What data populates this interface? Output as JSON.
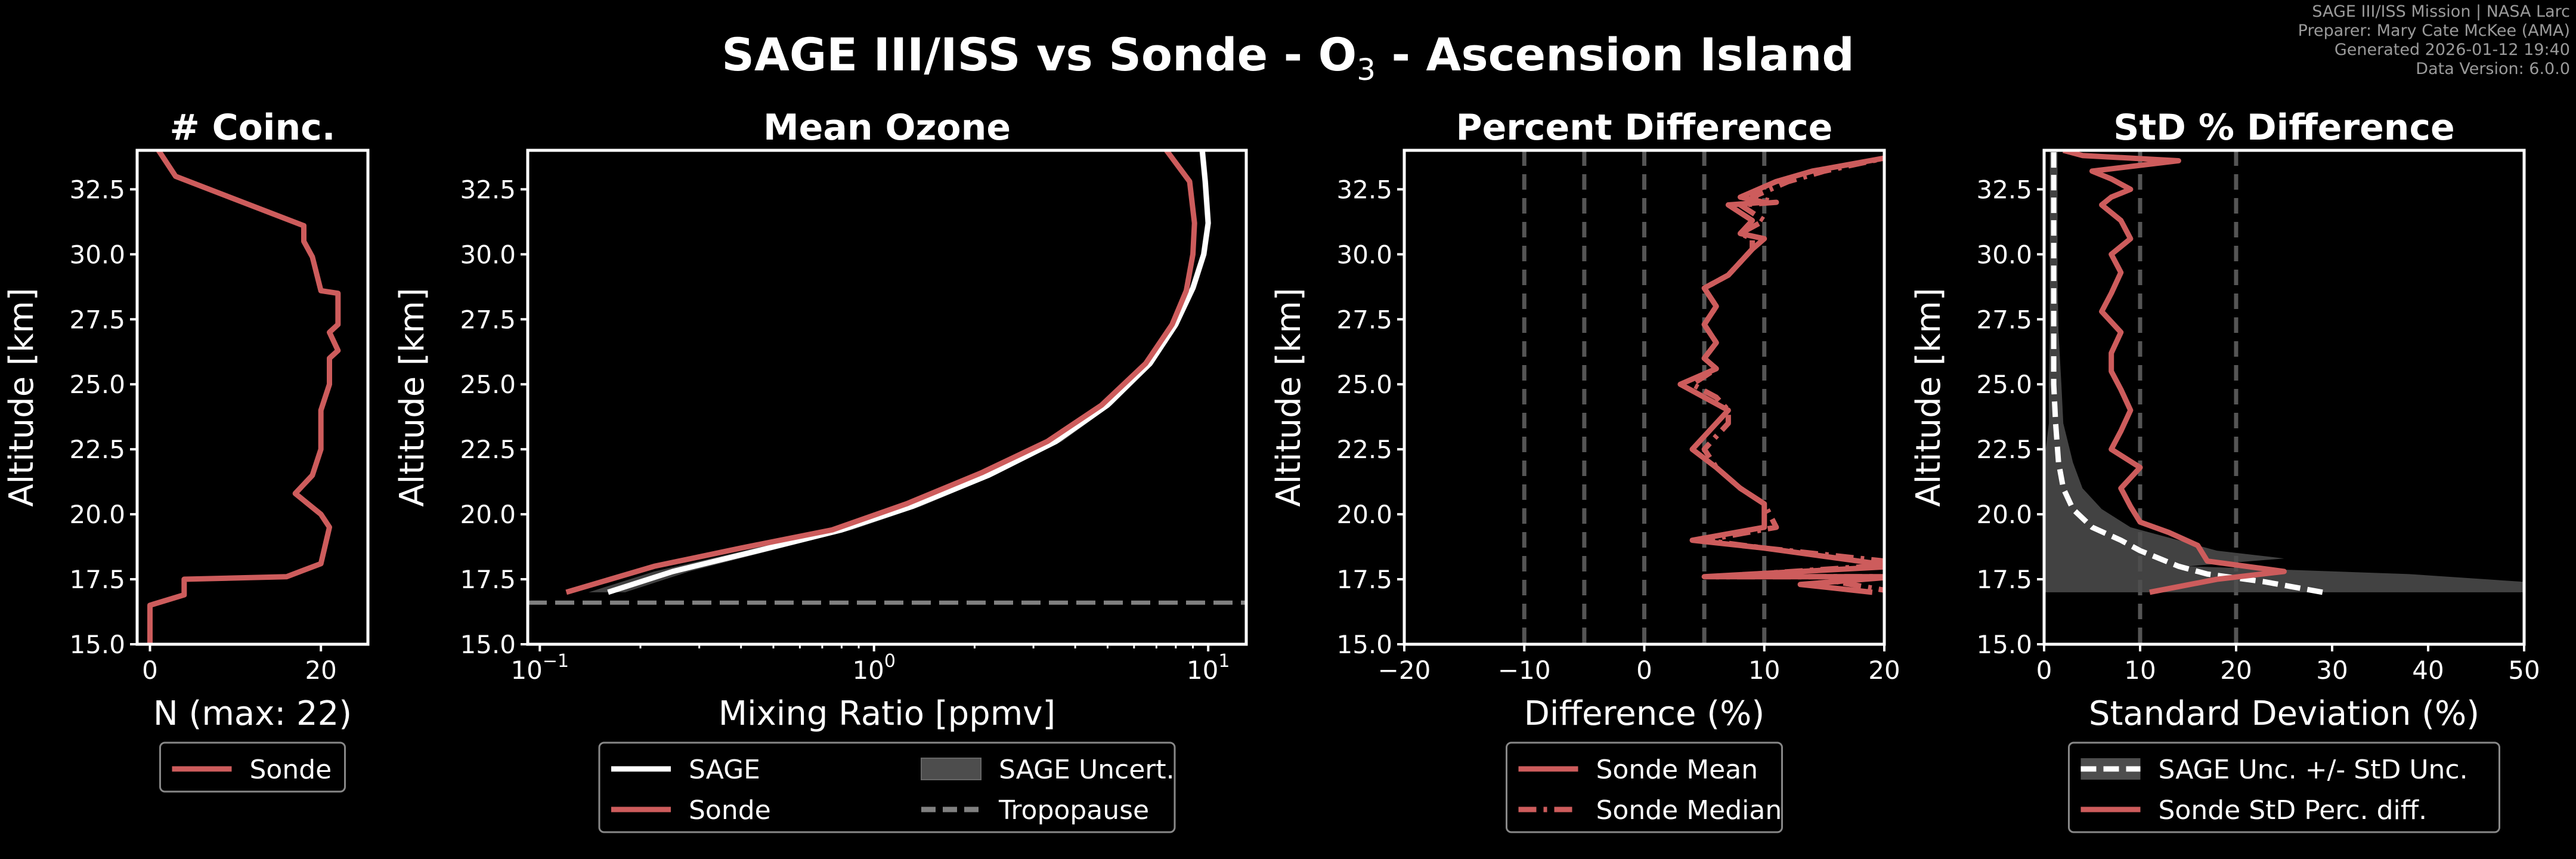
{
  "meta": {
    "line1": "SAGE III/ISS Mission | NASA Larc",
    "line2": "Preparer: Mary Cate McKee (AMA)",
    "line3": "Generated 2026-01-12 19:40",
    "line4": "Data Version: 6.0.0"
  },
  "suptitle": {
    "prefix": "SAGE III/ISS vs Sonde - O",
    "subscript": "3",
    "suffix": " - Ascension Island"
  },
  "colors": {
    "background": "#000000",
    "sonde": "#cd5c5c",
    "sage": "#ffffff",
    "uncert": "#4d4d4d",
    "tropopause": "#808080",
    "refline": "#555555"
  },
  "chart_data": [
    {
      "id": "coinc",
      "type": "line",
      "title": "# Coinc.",
      "xlabel": "N (max: 22)",
      "ylabel": "Altitude [km]",
      "xlim": [
        -1.5,
        25.5
      ],
      "ylim": [
        15.0,
        34.0
      ],
      "xticks": [
        0,
        20
      ],
      "xtick_labels": [
        "0",
        "20"
      ],
      "yticks": [
        15.0,
        17.5,
        20.0,
        22.5,
        25.0,
        27.5,
        30.0,
        32.5
      ],
      "ytick_labels": [
        "15.0",
        "17.5",
        "20.0",
        "22.5",
        "25.0",
        "27.5",
        "30.0",
        "32.5"
      ],
      "legend": [
        "Sonde"
      ],
      "series": [
        {
          "name": "Sonde",
          "style": "solid",
          "x": [
            0,
            0,
            4,
            4,
            16,
            20,
            21,
            20,
            17,
            19,
            20,
            20,
            21,
            21,
            22,
            21,
            22,
            22,
            20,
            19,
            18,
            18,
            3,
            1
          ],
          "y": [
            15.0,
            16.5,
            16.9,
            17.5,
            17.6,
            18.1,
            19.5,
            20.0,
            20.8,
            21.5,
            22.5,
            24.0,
            25.0,
            26.0,
            26.3,
            27.0,
            27.3,
            28.5,
            28.6,
            29.9,
            30.5,
            31.1,
            33.0,
            34.0
          ]
        }
      ]
    },
    {
      "id": "mean",
      "type": "line",
      "title": "Mean Ozone",
      "xlabel": "Mixing Ratio [ppmv]",
      "ylabel": "Altitude [km]",
      "xscale": "log",
      "xlim": [
        0.092,
        13.0
      ],
      "ylim": [
        15.0,
        34.0
      ],
      "xticks": [
        0.1,
        1,
        10
      ],
      "xtick_labels": [
        "10",
        "10",
        "10"
      ],
      "xtick_exponents": [
        "−1",
        "0",
        "1"
      ],
      "yticks": [
        15.0,
        17.5,
        20.0,
        22.5,
        25.0,
        27.5,
        30.0,
        32.5
      ],
      "ytick_labels": [
        "15.0",
        "17.5",
        "20.0",
        "22.5",
        "25.0",
        "27.5",
        "30.0",
        "32.5"
      ],
      "legend": [
        "SAGE",
        "SAGE Uncert.",
        "Sonde",
        "Tropopause"
      ],
      "tropopause_km": 16.6,
      "series": [
        {
          "name": "SAGE",
          "style": "solid",
          "x": [
            0.16,
            0.25,
            0.45,
            0.8,
            1.3,
            2.2,
            3.5,
            5.0,
            6.7,
            8.0,
            9.0,
            9.7,
            10.0,
            9.8,
            9.6
          ],
          "y": [
            17.0,
            17.8,
            18.6,
            19.4,
            20.3,
            21.5,
            22.8,
            24.2,
            25.8,
            27.3,
            28.7,
            30.0,
            31.2,
            32.8,
            34.0
          ]
        },
        {
          "name": "Sonde",
          "style": "solid",
          "x": [
            0.12,
            0.22,
            0.4,
            0.75,
            1.25,
            2.1,
            3.3,
            4.8,
            6.5,
            7.8,
            8.6,
            9.0,
            9.1,
            8.8,
            7.5
          ],
          "y": [
            17.0,
            18.0,
            18.7,
            19.4,
            20.4,
            21.6,
            22.8,
            24.2,
            25.8,
            27.3,
            28.6,
            30.0,
            31.2,
            32.8,
            34.0
          ]
        }
      ],
      "uncert_band": {
        "name": "SAGE Uncert.",
        "x_low": [
          0.14,
          0.22,
          0.41,
          0.74,
          1.22,
          2.1,
          3.35,
          4.85,
          6.55,
          7.85,
          8.8,
          9.5,
          9.8,
          9.6,
          9.4
        ],
        "x_high": [
          0.18,
          0.28,
          0.49,
          0.86,
          1.38,
          2.3,
          3.65,
          5.15,
          6.85,
          8.15,
          9.2,
          9.9,
          10.2,
          10.0,
          9.8
        ],
        "y": [
          17.0,
          17.8,
          18.6,
          19.4,
          20.3,
          21.5,
          22.8,
          24.2,
          25.8,
          27.3,
          28.7,
          30.0,
          31.2,
          32.8,
          34.0
        ]
      }
    },
    {
      "id": "pct",
      "type": "line",
      "title": "Percent Difference",
      "xlabel": "Difference (%)",
      "ylabel": "Altitude [km]",
      "xlim": [
        -20,
        20
      ],
      "ylim": [
        15.0,
        34.0
      ],
      "xticks": [
        -20,
        -10,
        0,
        10,
        20
      ],
      "xtick_labels": [
        "−20",
        "−10",
        "0",
        "10",
        "20"
      ],
      "yticks": [
        15.0,
        17.5,
        20.0,
        22.5,
        25.0,
        27.5,
        30.0,
        32.5
      ],
      "ytick_labels": [
        "15.0",
        "17.5",
        "20.0",
        "22.5",
        "25.0",
        "27.5",
        "30.0",
        "32.5"
      ],
      "reference_lines": [
        -10,
        -5,
        0,
        5,
        10
      ],
      "legend": [
        "Sonde Mean",
        "Sonde Median"
      ],
      "series": [
        {
          "name": "Sonde Mean",
          "style": "solid",
          "x": [
            19,
            13,
            21,
            5,
            21,
            10,
            4,
            10,
            10,
            8,
            6,
            4,
            6,
            7,
            5,
            3,
            6,
            5,
            6,
            5,
            6,
            5,
            7,
            8,
            9,
            10,
            8,
            9,
            7,
            10,
            8,
            11,
            14,
            20
          ],
          "y": [
            17.0,
            17.3,
            17.6,
            17.6,
            18.0,
            18.7,
            19.0,
            19.5,
            20.4,
            21.0,
            21.8,
            22.5,
            23.5,
            24.0,
            24.5,
            25.0,
            25.6,
            26.0,
            26.6,
            27.3,
            28.0,
            28.7,
            29.2,
            29.7,
            30.2,
            30.6,
            30.8,
            31.3,
            31.9,
            32.0,
            32.2,
            32.8,
            33.2,
            33.7
          ]
        },
        {
          "name": "Sonde Median",
          "style": "dashdot",
          "x": [
            21,
            16,
            19,
            6,
            22,
            10,
            5,
            11,
            10,
            8,
            6,
            5,
            7,
            7,
            6,
            4,
            6,
            5,
            6,
            5,
            6,
            5,
            7,
            8,
            9,
            9,
            8,
            10,
            8,
            11,
            9,
            12,
            15,
            20
          ],
          "y": [
            17.0,
            17.4,
            17.6,
            17.6,
            18.1,
            18.7,
            19.0,
            19.5,
            20.4,
            21.0,
            21.8,
            22.5,
            23.5,
            24.0,
            24.5,
            25.0,
            25.6,
            26.0,
            26.6,
            27.3,
            28.0,
            28.7,
            29.2,
            29.7,
            30.2,
            30.6,
            30.8,
            31.3,
            31.9,
            32.0,
            32.2,
            32.8,
            33.2,
            33.7
          ]
        }
      ]
    },
    {
      "id": "std",
      "type": "line",
      "title": "StD % Difference",
      "xlabel": "Standard Deviation (%)",
      "ylabel": "Altitude [km]",
      "xlim": [
        0,
        50
      ],
      "ylim": [
        15.0,
        34.0
      ],
      "xticks": [
        0,
        10,
        20,
        30,
        40,
        50
      ],
      "xtick_labels": [
        "0",
        "10",
        "20",
        "30",
        "40",
        "50"
      ],
      "yticks": [
        15.0,
        17.5,
        20.0,
        22.5,
        25.0,
        27.5,
        30.0,
        32.5
      ],
      "ytick_labels": [
        "15.0",
        "17.5",
        "20.0",
        "22.5",
        "25.0",
        "27.5",
        "30.0",
        "32.5"
      ],
      "reference_lines": [
        10,
        20
      ],
      "legend": [
        "SAGE Unc. +/- StD Unc.",
        "Sonde StD Perc. diff."
      ],
      "series": [
        {
          "name": "SAGE Unc. +/- StD Unc.",
          "style": "dashed",
          "x": [
            29,
            23,
            17,
            14,
            12,
            10,
            8,
            5,
            3,
            2,
            1.5,
            1.2,
            1,
            1,
            1,
            1,
            1,
            1
          ],
          "y": [
            17.0,
            17.4,
            17.7,
            18.0,
            18.3,
            18.6,
            19.0,
            19.5,
            20.2,
            21.0,
            22.0,
            23.5,
            25.0,
            27.0,
            29.0,
            31.0,
            32.5,
            34.0
          ]
        },
        {
          "name": "Sonde StD Perc. diff.",
          "style": "solid",
          "x": [
            11,
            18,
            25,
            17,
            16,
            13,
            10,
            9,
            8,
            10,
            7,
            8,
            9,
            8,
            7,
            7,
            8,
            6,
            7,
            8,
            7,
            9,
            8,
            6,
            7,
            9,
            7,
            5,
            14,
            4,
            2
          ],
          "y": [
            17.0,
            17.5,
            17.8,
            18.2,
            18.8,
            19.3,
            19.7,
            20.3,
            21.0,
            21.8,
            22.5,
            23.2,
            24.0,
            24.8,
            25.5,
            26.2,
            27.0,
            27.8,
            28.5,
            29.3,
            30.0,
            30.6,
            31.3,
            31.9,
            32.2,
            32.5,
            32.9,
            33.2,
            33.6,
            33.8,
            34.0
          ]
        }
      ],
      "uncert_band": {
        "name": "SAGE Unc. +/- StD Unc.",
        "x_low": [
          0,
          0,
          0,
          0,
          0,
          0,
          0,
          0,
          0,
          0,
          0,
          0.5,
          0.5,
          0.6,
          0.6,
          0.6,
          0.6,
          0.6
        ],
        "x_high": [
          50,
          50,
          38,
          15,
          25,
          18,
          14,
          9,
          6,
          4,
          3,
          2,
          1.8,
          1.5,
          1.4,
          1.4,
          1.4,
          1.4
        ],
        "y": [
          17.0,
          17.4,
          17.7,
          18.0,
          18.3,
          18.6,
          19.0,
          19.5,
          20.2,
          21.0,
          22.0,
          23.5,
          25.0,
          27.0,
          29.0,
          31.0,
          32.5,
          34.0
        ]
      }
    }
  ]
}
